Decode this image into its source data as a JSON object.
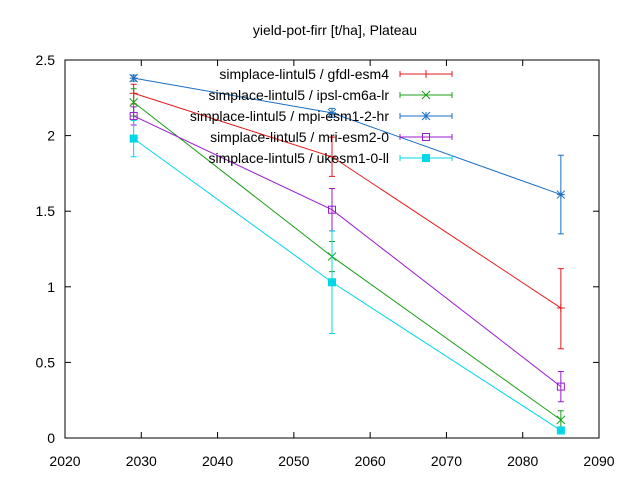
{
  "chart_data": {
    "type": "line",
    "title": "yield-pot-firr [t/ha], Plateau",
    "xlabel": "",
    "ylabel": "",
    "xlim": [
      2020,
      2090
    ],
    "ylim": [
      0,
      2.5
    ],
    "xticks": [
      2020,
      2030,
      2040,
      2050,
      2060,
      2070,
      2080,
      2090
    ],
    "yticks": [
      0,
      0.5,
      1,
      1.5,
      2,
      2.5
    ],
    "xtick_labels": [
      "2020",
      "2030",
      "2040",
      "2050",
      "2060",
      "2070",
      "2080",
      "2090"
    ],
    "ytick_labels": [
      "0",
      "0.5",
      "1",
      "1.5",
      "2",
      "2.5"
    ],
    "legend_position": "top-right",
    "grid": false,
    "x": [
      2029,
      2055,
      2085
    ],
    "series": [
      {
        "name": "simplace-lintul5 / gfdl-esm4",
        "color": "#e41a1c",
        "marker": "plus",
        "values": [
          2.28,
          1.86,
          0.86
        ],
        "err_low": [
          2.21,
          1.73,
          0.59
        ],
        "err_high": [
          2.34,
          1.99,
          1.12
        ]
      },
      {
        "name": "simplace-lintul5 / ipsl-cm6a-lr",
        "color": "#1aa01a",
        "marker": "cross",
        "values": [
          2.22,
          1.2,
          0.12
        ],
        "err_low": [
          2.13,
          1.1,
          0.06
        ],
        "err_high": [
          2.31,
          1.3,
          0.18
        ]
      },
      {
        "name": "simplace-lintul5 / mpi-esm1-2-hr",
        "color": "#1a6fc4",
        "marker": "star",
        "values": [
          2.38,
          2.15,
          1.61
        ],
        "err_low": [
          2.36,
          2.12,
          1.35
        ],
        "err_high": [
          2.4,
          2.18,
          1.87
        ]
      },
      {
        "name": "simplace-lintul5 / mri-esm2-0",
        "color": "#9a1ad0",
        "marker": "square-open",
        "values": [
          2.13,
          1.51,
          0.34
        ],
        "err_low": [
          2.07,
          1.37,
          0.24
        ],
        "err_high": [
          2.19,
          1.65,
          0.44
        ]
      },
      {
        "name": "simplace-lintul5 / ukesm1-0-ll",
        "color": "#00d8e8",
        "marker": "square-filled",
        "values": [
          1.98,
          1.03,
          0.05
        ],
        "err_low": [
          1.86,
          0.69,
          0.03
        ],
        "err_high": [
          2.1,
          1.37,
          0.07
        ]
      }
    ]
  }
}
